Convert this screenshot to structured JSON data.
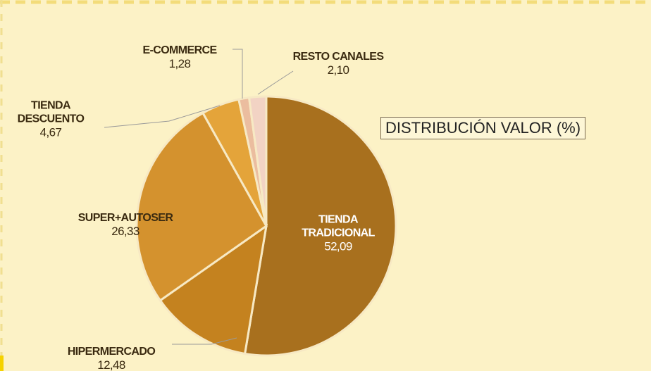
{
  "chart_data": {
    "type": "pie",
    "title": "DISTRIBUCIÓN VALOR (%)",
    "categories": [
      "TIENDA TRADICIONAL",
      "HIPERMERCADO",
      "SUPER+AUTOSER",
      "TIENDA DESCUENTO",
      "E-COMMERCE",
      "RESTO CANALES"
    ],
    "values": [
      52.09,
      12.48,
      26.33,
      4.67,
      1.28,
      2.1
    ],
    "value_labels": [
      "52,09",
      "12,48",
      "26,33",
      "4,67",
      "1,28",
      "2,10"
    ],
    "colors": [
      "#a8701e",
      "#c4821f",
      "#d4922e",
      "#e4a43a",
      "#ebbd9f",
      "#f2d3c4"
    ]
  }
}
